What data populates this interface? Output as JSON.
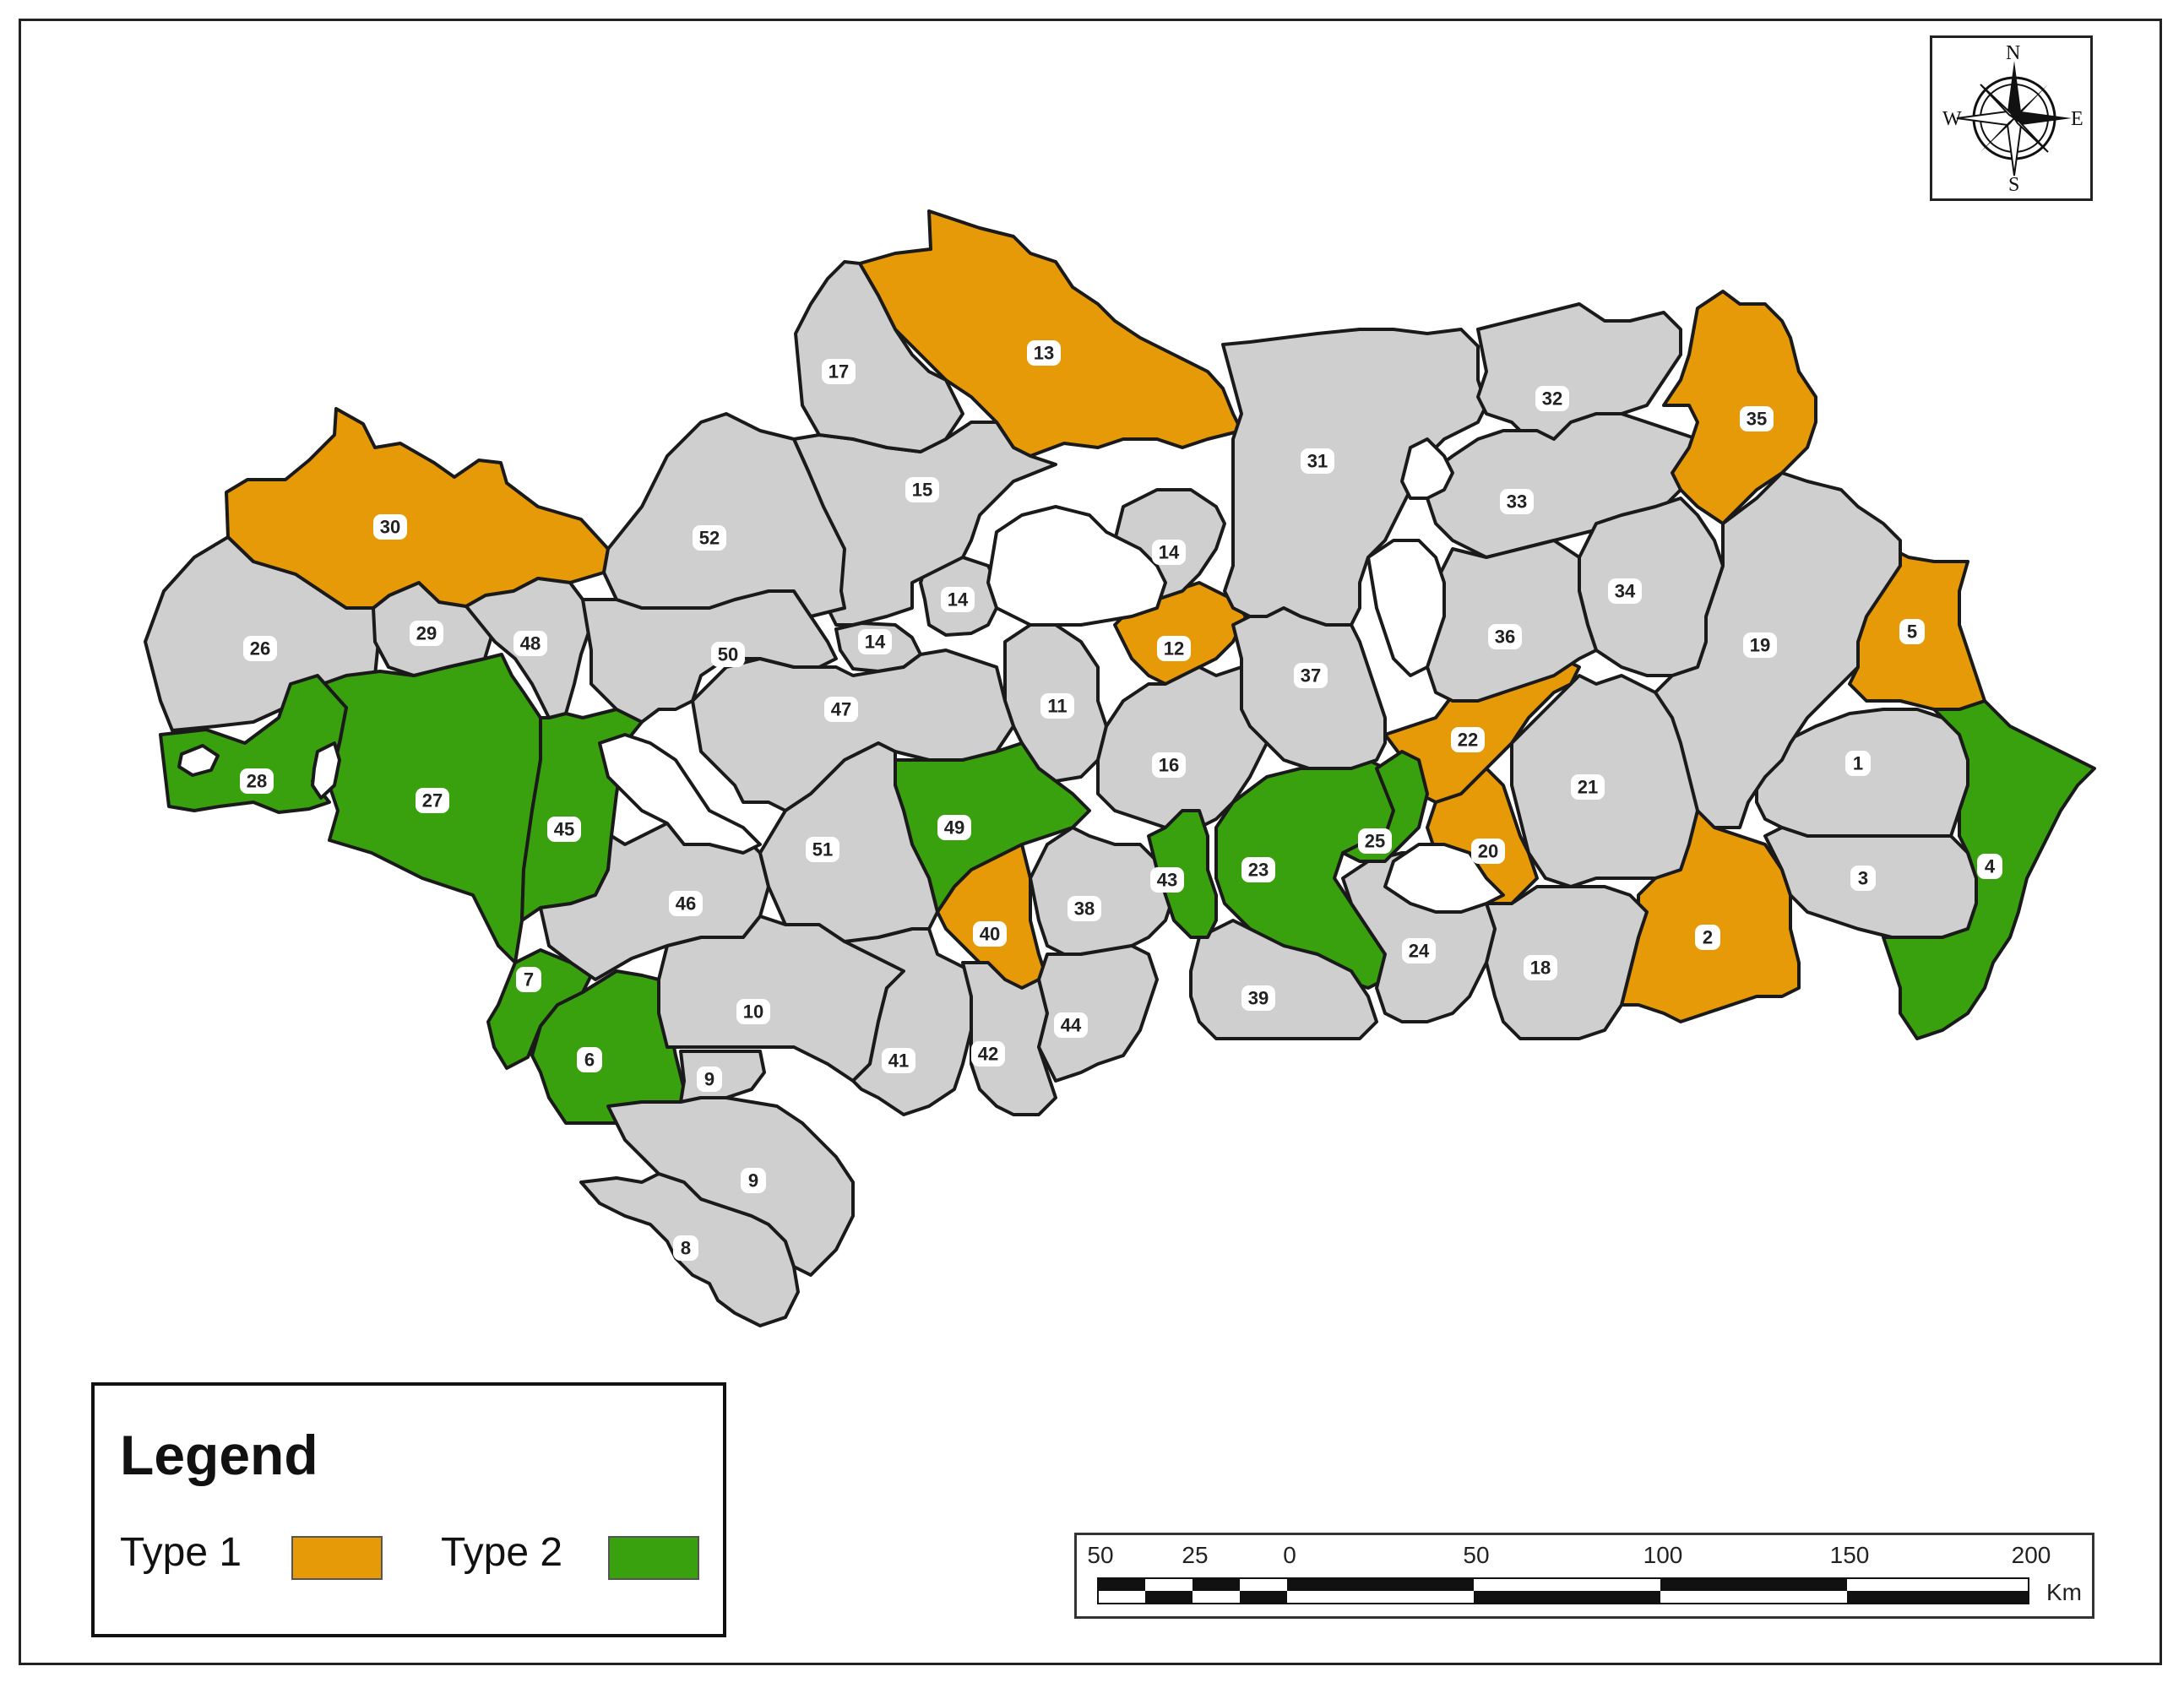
{
  "map": {
    "type": "choropleth",
    "colors": {
      "default": "#cfcfcf",
      "type1": "#e69a08",
      "type2": "#3aa10e",
      "none": "#ffffff",
      "outline": "#1a1a1a"
    },
    "regions": [
      {
        "id": "1",
        "label": "1",
        "category": "default"
      },
      {
        "id": "2",
        "label": "2",
        "category": "type1"
      },
      {
        "id": "3",
        "label": "3",
        "category": "default"
      },
      {
        "id": "4",
        "label": "4",
        "category": "type2"
      },
      {
        "id": "5",
        "label": "5",
        "category": "type1"
      },
      {
        "id": "6",
        "label": "6",
        "category": "type2"
      },
      {
        "id": "7",
        "label": "7",
        "category": "type2"
      },
      {
        "id": "8",
        "label": "8",
        "category": "default"
      },
      {
        "id": "9a",
        "label": "9",
        "category": "default"
      },
      {
        "id": "9b",
        "label": "9",
        "category": "default"
      },
      {
        "id": "10",
        "label": "10",
        "category": "default"
      },
      {
        "id": "11",
        "label": "11",
        "category": "default"
      },
      {
        "id": "12",
        "label": "12",
        "category": "type1"
      },
      {
        "id": "13",
        "label": "13",
        "category": "type1"
      },
      {
        "id": "14a",
        "label": "14",
        "category": "default"
      },
      {
        "id": "14b",
        "label": "14",
        "category": "default"
      },
      {
        "id": "14c",
        "label": "14",
        "category": "default"
      },
      {
        "id": "15",
        "label": "15",
        "category": "default"
      },
      {
        "id": "16",
        "label": "16",
        "category": "default"
      },
      {
        "id": "17",
        "label": "17",
        "category": "default"
      },
      {
        "id": "18",
        "label": "18",
        "category": "default"
      },
      {
        "id": "19",
        "label": "19",
        "category": "default"
      },
      {
        "id": "20",
        "label": "20",
        "category": "type1"
      },
      {
        "id": "21",
        "label": "21",
        "category": "default"
      },
      {
        "id": "22",
        "label": "22",
        "category": "type1"
      },
      {
        "id": "23",
        "label": "23",
        "category": "type2"
      },
      {
        "id": "24",
        "label": "24",
        "category": "default"
      },
      {
        "id": "25",
        "label": "25",
        "category": "type2"
      },
      {
        "id": "26",
        "label": "26",
        "category": "default"
      },
      {
        "id": "27",
        "label": "27",
        "category": "type2"
      },
      {
        "id": "28",
        "label": "28",
        "category": "type2"
      },
      {
        "id": "29",
        "label": "29",
        "category": "default"
      },
      {
        "id": "30",
        "label": "30",
        "category": "type1"
      },
      {
        "id": "31",
        "label": "31",
        "category": "default"
      },
      {
        "id": "32",
        "label": "32",
        "category": "default"
      },
      {
        "id": "33",
        "label": "33",
        "category": "default"
      },
      {
        "id": "34",
        "label": "34",
        "category": "default"
      },
      {
        "id": "35",
        "label": "35",
        "category": "type1"
      },
      {
        "id": "36",
        "label": "36",
        "category": "default"
      },
      {
        "id": "37",
        "label": "37",
        "category": "default"
      },
      {
        "id": "38",
        "label": "38",
        "category": "default"
      },
      {
        "id": "39",
        "label": "39",
        "category": "default"
      },
      {
        "id": "40",
        "label": "40",
        "category": "type1"
      },
      {
        "id": "41",
        "label": "41",
        "category": "default"
      },
      {
        "id": "42",
        "label": "42",
        "category": "default"
      },
      {
        "id": "43",
        "label": "43",
        "category": "type2"
      },
      {
        "id": "44",
        "label": "44",
        "category": "default"
      },
      {
        "id": "45",
        "label": "45",
        "category": "type2"
      },
      {
        "id": "46",
        "label": "46",
        "category": "default"
      },
      {
        "id": "47",
        "label": "47",
        "category": "default"
      },
      {
        "id": "48",
        "label": "48",
        "category": "default"
      },
      {
        "id": "49",
        "label": "49",
        "category": "type2"
      },
      {
        "id": "50",
        "label": "50",
        "category": "default"
      },
      {
        "id": "51",
        "label": "51",
        "category": "default"
      },
      {
        "id": "52",
        "label": "52",
        "category": "default"
      }
    ]
  },
  "compass": {
    "n": "N",
    "s": "S",
    "e": "E",
    "w": "W",
    "icon": "compass-rose-icon"
  },
  "legend": {
    "title": "Legend",
    "items": [
      {
        "label": "Type 1",
        "color": "#e69a08"
      },
      {
        "label": "Type 2",
        "color": "#3aa10e"
      }
    ]
  },
  "scalebar": {
    "ticks": [
      "50",
      "25",
      "0",
      "50",
      "100",
      "150",
      "200"
    ],
    "unit": "Km"
  }
}
